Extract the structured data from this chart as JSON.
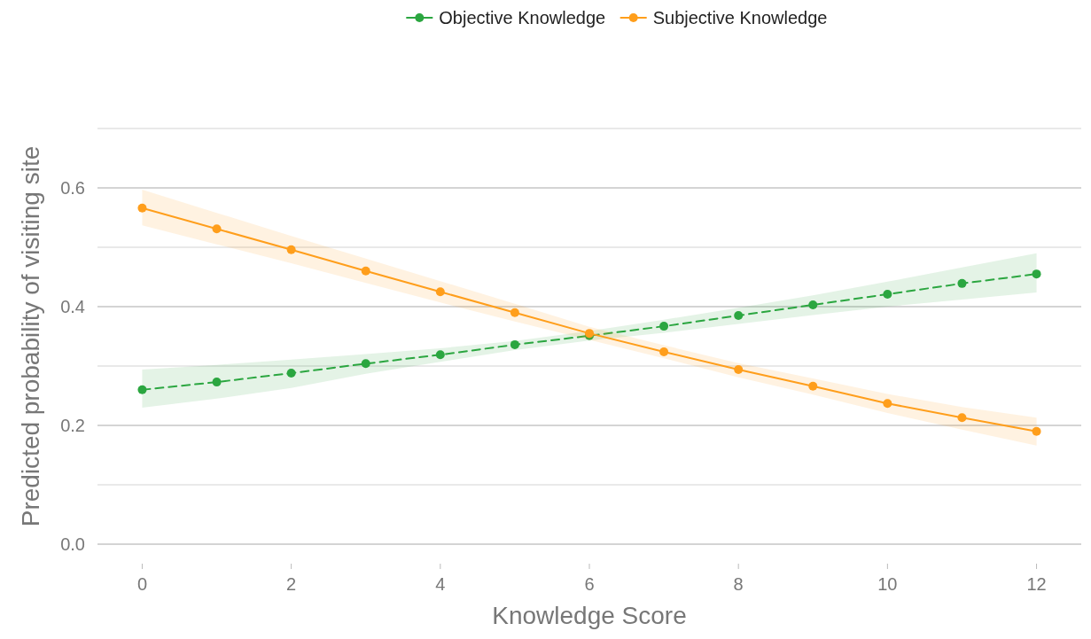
{
  "chart_data": {
    "type": "line",
    "xlabel": "Knowledge Score",
    "ylabel": "Predicted probability of visiting site",
    "x": [
      0,
      1,
      2,
      3,
      4,
      5,
      6,
      7,
      8,
      9,
      10,
      11,
      12
    ],
    "xlim": [
      -0.6,
      12.6
    ],
    "xticks": [
      0,
      2,
      4,
      6,
      8,
      10,
      12
    ],
    "ylim": [
      0,
      0.7
    ],
    "yticks": [
      {
        "value": 0,
        "label": "0.0"
      },
      {
        "value": 0.1,
        "label": null
      },
      {
        "value": 0.2,
        "label": "0.2"
      },
      {
        "value": 0.3,
        "label": null
      },
      {
        "value": 0.4,
        "label": "0.4"
      },
      {
        "value": 0.5,
        "label": null
      },
      {
        "value": 0.6,
        "label": "0.6"
      },
      {
        "value": 0.7,
        "label": null
      }
    ],
    "grid": "y",
    "legend": "top",
    "marker": "circle",
    "series": [
      {
        "name": "Objective Knowledge",
        "color": "#2ba640",
        "line_style": "dashed",
        "values": [
          0.26,
          0.273,
          0.288,
          0.304,
          0.319,
          0.336,
          0.351,
          0.367,
          0.385,
          0.403,
          0.421,
          0.439,
          0.455
        ],
        "lower": [
          0.23,
          0.245,
          0.263,
          0.287,
          0.307,
          0.327,
          0.343,
          0.356,
          0.371,
          0.386,
          0.4,
          0.412,
          0.424
        ],
        "upper": [
          0.294,
          0.302,
          0.311,
          0.32,
          0.33,
          0.342,
          0.359,
          0.378,
          0.398,
          0.419,
          0.442,
          0.466,
          0.49
        ]
      },
      {
        "name": "Subjective Knowledge",
        "color": "#ff9e1b",
        "line_style": "solid",
        "values": [
          0.566,
          0.531,
          0.496,
          0.46,
          0.425,
          0.39,
          0.355,
          0.324,
          0.294,
          0.266,
          0.237,
          0.213,
          0.19
        ],
        "lower": [
          0.537,
          0.505,
          0.473,
          0.44,
          0.407,
          0.375,
          0.344,
          0.313,
          0.281,
          0.252,
          0.221,
          0.193,
          0.166
        ],
        "upper": [
          0.597,
          0.558,
          0.519,
          0.481,
          0.443,
          0.405,
          0.366,
          0.335,
          0.305,
          0.279,
          0.253,
          0.231,
          0.213
        ]
      }
    ]
  }
}
